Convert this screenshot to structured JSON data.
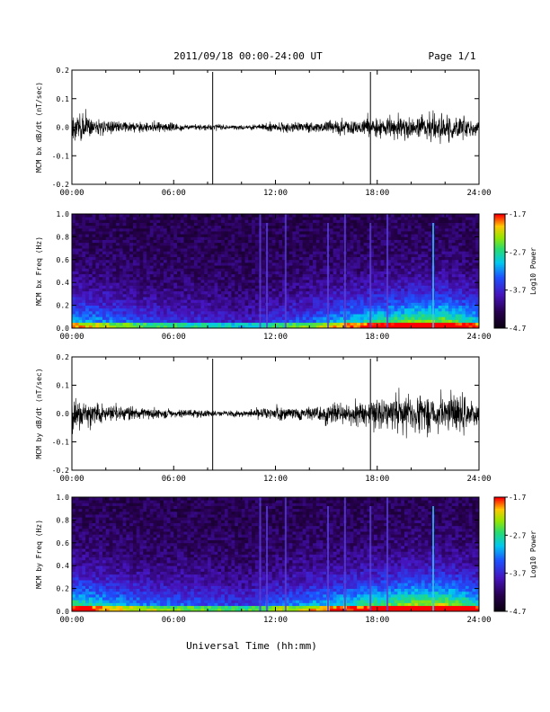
{
  "header": {
    "title": "2011/09/18  00:00-24:00 UT",
    "page": "Page 1/1"
  },
  "footer": {
    "xlabel": "Universal Time (hh:mm)"
  },
  "chart_data": [
    {
      "type": "line",
      "panel": "bx_dbdt",
      "ylabel": "MCM bx dB/dt (nT/sec)",
      "x_ticks": [
        "00:00",
        "06:00",
        "12:00",
        "18:00",
        "24:00"
      ],
      "y_ticks": [
        "-0.2",
        "-0.1",
        "0.0",
        "0.1",
        "0.2"
      ],
      "xlim_hours": [
        0,
        24
      ],
      "ylim": [
        -0.2,
        0.2
      ],
      "spikes_hours": [
        8.3,
        17.6
      ],
      "series": [
        {
          "x_hours": [
            0,
            1,
            2,
            3,
            4,
            5,
            6,
            7,
            8,
            9,
            10,
            11,
            12,
            13,
            14,
            15,
            16,
            17,
            18,
            19,
            20,
            21,
            22,
            23,
            24
          ],
          "amplitude": [
            0.06,
            0.04,
            0.025,
            0.02,
            0.02,
            0.02,
            0.015,
            0.012,
            0.012,
            0.008,
            0.008,
            0.012,
            0.02,
            0.02,
            0.02,
            0.025,
            0.03,
            0.035,
            0.035,
            0.04,
            0.045,
            0.05,
            0.05,
            0.045,
            0.03
          ]
        }
      ]
    },
    {
      "type": "heatmap",
      "panel": "bx_spectrogram",
      "ylabel": "MCM bx Freq (Hz)",
      "x_ticks": [
        "00:00",
        "06:00",
        "12:00",
        "18:00",
        "24:00"
      ],
      "y_ticks": [
        "0.0",
        "0.2",
        "0.4",
        "0.6",
        "0.8",
        "1.0"
      ],
      "xlim_hours": [
        0,
        24
      ],
      "ylim": [
        0,
        1.0
      ],
      "colorbar": {
        "label": "Log10 Power",
        "ticks": [
          "-1.7",
          "-2.7",
          "-3.7",
          "-4.7"
        ],
        "range": [
          -4.7,
          -1.7
        ]
      },
      "activity_hours": [
        0,
        2,
        4,
        6,
        8,
        10,
        12,
        14,
        16,
        18,
        20,
        22,
        24
      ],
      "activity_level": [
        0.55,
        0.45,
        0.35,
        0.3,
        0.25,
        0.2,
        0.3,
        0.4,
        0.55,
        0.65,
        0.75,
        0.8,
        0.55
      ],
      "bright_lines_hours": [
        11.1,
        11.5,
        12.6,
        15.1,
        16.1,
        17.6,
        18.6,
        21.3
      ]
    },
    {
      "type": "line",
      "panel": "by_dbdt",
      "ylabel": "MCM by dB/dt (nT/sec)",
      "x_ticks": [
        "00:00",
        "06:00",
        "12:00",
        "18:00",
        "24:00"
      ],
      "y_ticks": [
        "-0.2",
        "-0.1",
        "0.0",
        "0.1",
        "0.2"
      ],
      "xlim_hours": [
        0,
        24
      ],
      "ylim": [
        -0.2,
        0.2
      ],
      "spikes_hours": [
        8.3,
        17.6
      ],
      "series": [
        {
          "x_hours": [
            0,
            1,
            2,
            3,
            4,
            5,
            6,
            7,
            8,
            9,
            10,
            11,
            12,
            13,
            14,
            15,
            16,
            17,
            18,
            19,
            20,
            21,
            22,
            23,
            24
          ],
          "amplitude": [
            0.07,
            0.05,
            0.03,
            0.025,
            0.02,
            0.02,
            0.018,
            0.015,
            0.013,
            0.01,
            0.012,
            0.018,
            0.025,
            0.025,
            0.03,
            0.035,
            0.04,
            0.045,
            0.055,
            0.06,
            0.065,
            0.07,
            0.07,
            0.065,
            0.04
          ]
        }
      ]
    },
    {
      "type": "heatmap",
      "panel": "by_spectrogram",
      "ylabel": "MCM by Freq (Hz)",
      "x_ticks": [
        "00:00",
        "06:00",
        "12:00",
        "18:00",
        "24:00"
      ],
      "y_ticks": [
        "0.0",
        "0.2",
        "0.4",
        "0.6",
        "0.8",
        "1.0"
      ],
      "xlim_hours": [
        0,
        24
      ],
      "ylim": [
        0,
        1.0
      ],
      "colorbar": {
        "label": "Log10 Power",
        "ticks": [
          "-1.7",
          "-2.7",
          "-3.7",
          "-4.7"
        ],
        "range": [
          -4.7,
          -1.7
        ]
      },
      "activity_hours": [
        0,
        2,
        4,
        6,
        8,
        10,
        12,
        14,
        16,
        18,
        20,
        22,
        24
      ],
      "activity_level": [
        0.7,
        0.55,
        0.45,
        0.4,
        0.35,
        0.3,
        0.4,
        0.5,
        0.6,
        0.7,
        0.8,
        0.85,
        0.6
      ],
      "bright_lines_hours": [
        11.1,
        11.5,
        12.6,
        15.1,
        16.1,
        17.6,
        18.6,
        21.3
      ]
    }
  ]
}
